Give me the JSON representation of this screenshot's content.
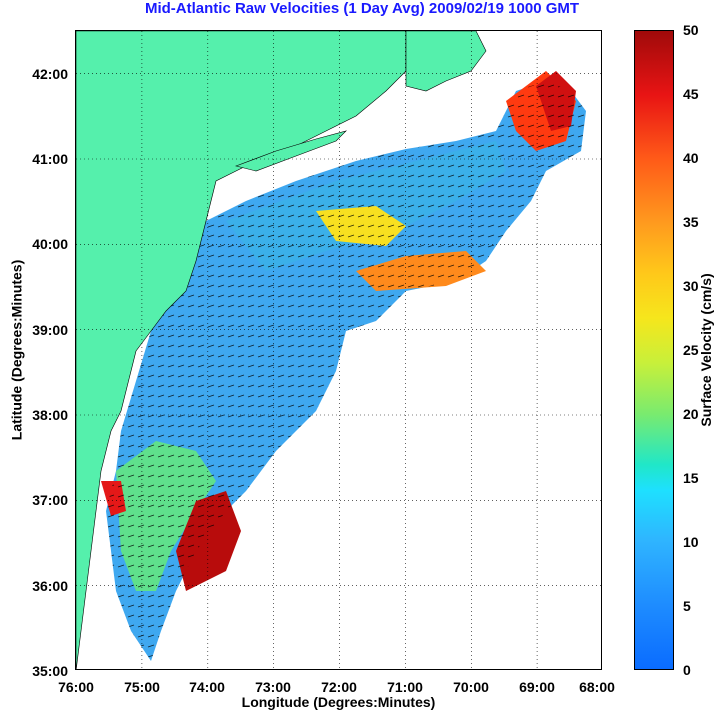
{
  "title": "Mid-Atlantic Raw Velocities (1 Day Avg) 2009/02/19 1000 GMT",
  "map": {
    "xlabel": "Longitude (Degrees:Minutes)",
    "ylabel": "Latitude (Degrees:Minutes)",
    "x_ticks": [
      "76:00",
      "75:00",
      "74:00",
      "73:00",
      "72:00",
      "71:00",
      "70:00",
      "69:00",
      "68:00"
    ],
    "y_ticks": [
      "42:00",
      "41:00",
      "40:00",
      "39:00",
      "38:00",
      "37:00",
      "36:00",
      "35:00"
    ],
    "lon_range": [
      -76,
      -68
    ],
    "lat_range": [
      35,
      42.5
    ],
    "grid": "dotted",
    "land_color": "#55f0ac"
  },
  "colorbar": {
    "label": "Surface Velocity (cm/s)",
    "ticks": [
      "50",
      "45",
      "40",
      "35",
      "30",
      "25",
      "20",
      "15",
      "10",
      "5",
      "0"
    ],
    "range": [
      0,
      50
    ]
  },
  "legend": {}
}
